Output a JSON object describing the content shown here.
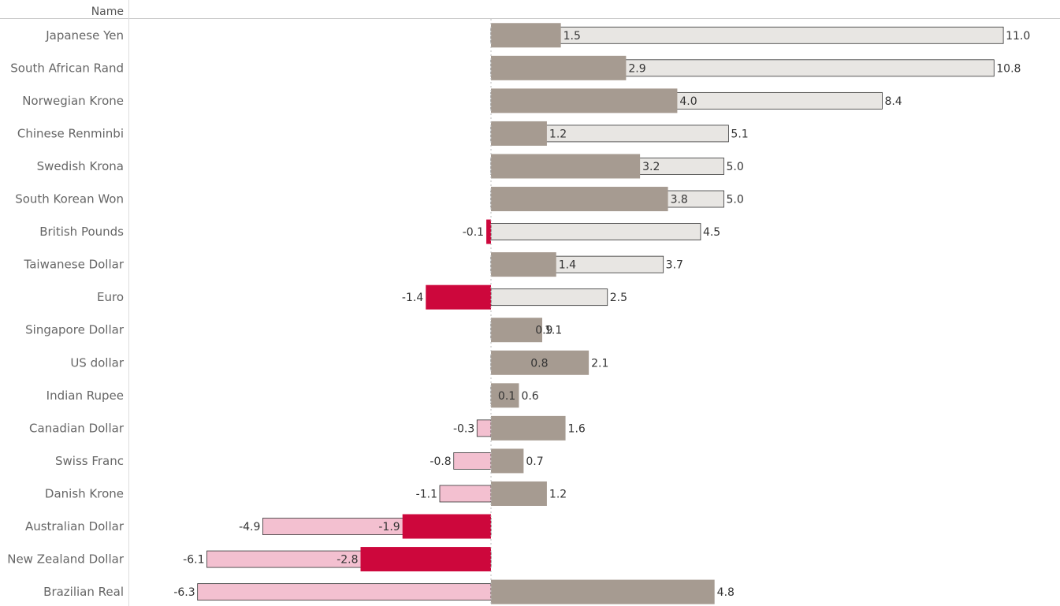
{
  "chart_data": {
    "type": "bar",
    "orientation": "horizontal",
    "header": "Name",
    "categories": [
      "Japanese Yen",
      "South African Rand",
      "Norwegian Krone",
      "Chinese Renminbi",
      "Swedish Krona",
      "South Korean Won",
      "British Pounds",
      "Taiwanese Dollar",
      "Euro",
      "Singapore Dollar",
      "US dollar",
      "Indian Rupee",
      "Canadian Dollar",
      "Swiss Franc",
      "Danish Krone",
      "Australian Dollar",
      "New Zealand Dollar",
      "Brazilian Real"
    ],
    "series": [
      {
        "style": "wide",
        "values": [
          1.5,
          2.9,
          4.0,
          1.2,
          3.2,
          3.8,
          -0.1,
          1.4,
          -1.4,
          1.1,
          2.1,
          0.6,
          1.6,
          0.7,
          1.2,
          -1.9,
          -2.8,
          4.8
        ],
        "labels": [
          "1.5",
          "2.9",
          "4.0",
          "1.2",
          "3.2",
          "3.8",
          "-0.1",
          "1.4",
          "-1.4",
          "1.1",
          "2.1",
          "0.6",
          "1.6",
          "0.7",
          "1.2",
          "-1.9",
          "-2.8",
          "4.8"
        ]
      },
      {
        "style": "narrow",
        "values": [
          11.0,
          10.8,
          8.4,
          5.1,
          5.0,
          5.0,
          4.5,
          3.7,
          2.5,
          0.9,
          0.8,
          0.1,
          -0.3,
          -0.8,
          -1.1,
          -4.9,
          -6.1,
          -6.3
        ],
        "labels": [
          "11.0",
          "10.8",
          "8.4",
          "5.1",
          "5.0",
          "5.0",
          "4.5",
          "3.7",
          "2.5",
          "0.9",
          "0.8",
          "0.1",
          "-0.3",
          "-0.8",
          "-1.1",
          "-4.9",
          "-6.1",
          "-6.3"
        ]
      }
    ],
    "xlim": [
      -7.2,
      11.5
    ],
    "zero_line": "dotted",
    "colors": {
      "wide_positive": "#a69b91",
      "wide_negative": "#cd073c",
      "narrow_positive": "#e8e6e3",
      "narrow_negative": "#f3c0d0",
      "narrow_stroke": "#333333",
      "header_rule": "#cccccc",
      "zero_line": "#bbbbbb"
    }
  }
}
